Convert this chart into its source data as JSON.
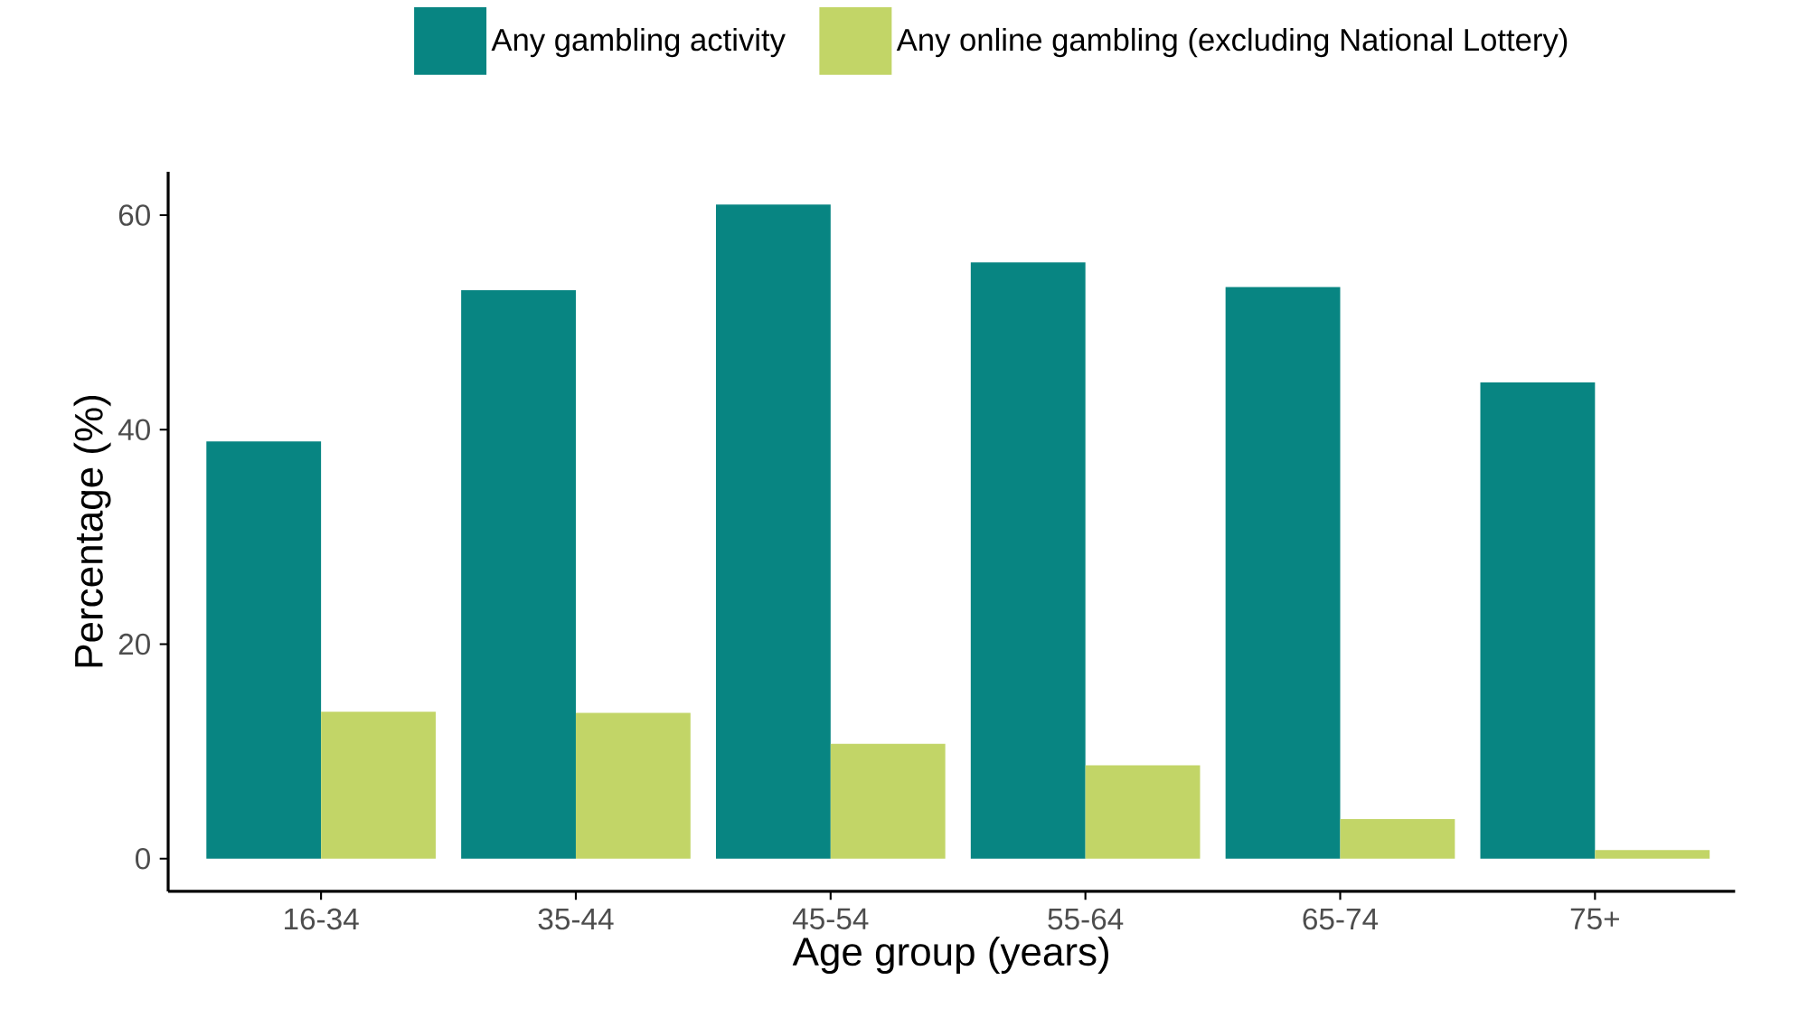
{
  "chart_data": {
    "type": "bar",
    "xlabel": "Age group (years)",
    "ylabel": "Percentage (%)",
    "categories": [
      "16-34",
      "35-44",
      "45-54",
      "55-64",
      "65-74",
      "75+"
    ],
    "series": [
      {
        "name": "Any gambling activity",
        "color": "#088582",
        "values": [
          38.9,
          53.0,
          61.0,
          55.6,
          53.3,
          44.4
        ]
      },
      {
        "name": "Any online gambling (excluding National Lottery)",
        "color": "#c2d567",
        "values": [
          13.7,
          13.6,
          10.7,
          8.7,
          3.7,
          0.8
        ]
      }
    ],
    "ylim": [
      -3.05,
      64.05
    ],
    "yticks": [
      0,
      20,
      40,
      60
    ],
    "grid": false,
    "legend": "top"
  }
}
